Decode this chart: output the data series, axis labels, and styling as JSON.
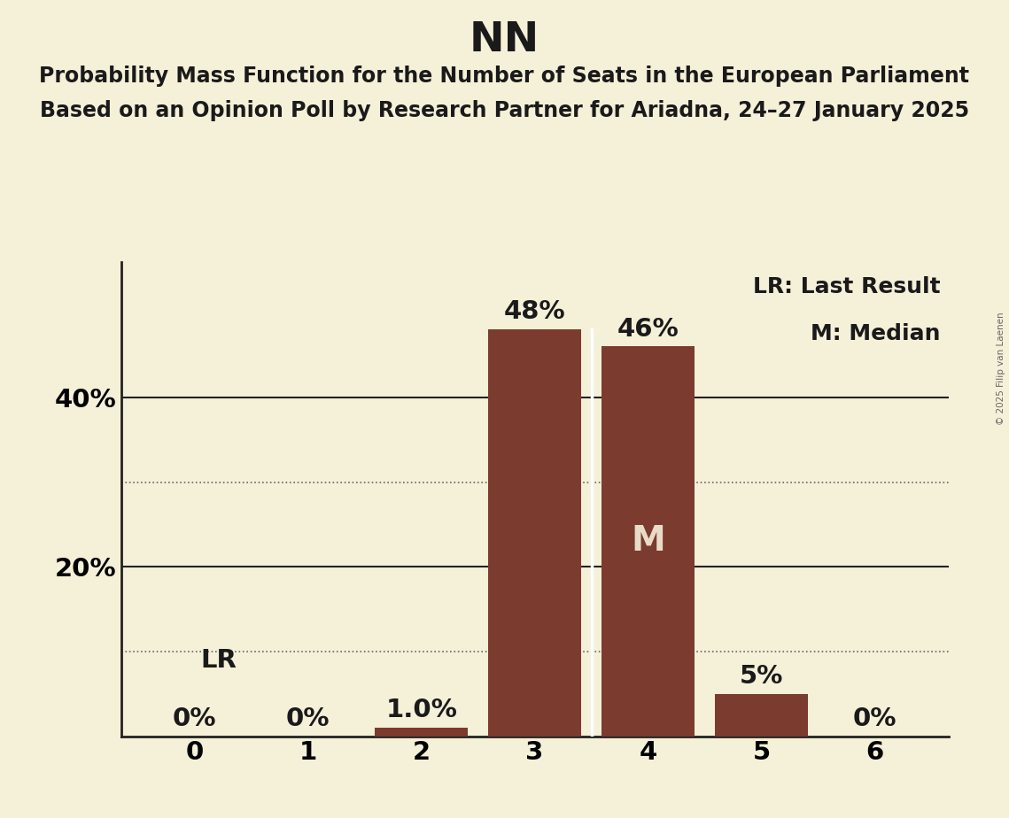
{
  "title": "NN",
  "subtitle1": "Probability Mass Function for the Number of Seats in the European Parliament",
  "subtitle2": "Based on an Opinion Poll by Research Partner for Ariadna, 24–27 January 2025",
  "copyright": "© 2025 Filip van Laenen",
  "categories": [
    0,
    1,
    2,
    3,
    4,
    5,
    6
  ],
  "values": [
    0.0,
    0.0,
    1.0,
    48.0,
    46.0,
    5.0,
    0.0
  ],
  "bar_color": "#7b3b2e",
  "background_color": "#f5f0d8",
  "label_color_dark": "#1a1a1a",
  "label_color_light": "#e8dcc8",
  "median_seat": 4,
  "lr_seat": 0,
  "dotted_lines": [
    10.0,
    30.0
  ],
  "solid_lines": [
    20.0,
    40.0
  ],
  "ylim": [
    0,
    56
  ],
  "yticks": [
    20,
    40
  ],
  "ytick_labels": [
    "20%",
    "40%"
  ],
  "legend_text1": "LR: Last Result",
  "legend_text2": "M: Median",
  "bar_labels": [
    "0%",
    "0%",
    "1.0%",
    "48%",
    "46%",
    "5%",
    "0%"
  ],
  "separator_between": [
    3,
    4
  ],
  "title_fontsize": 34,
  "subtitle_fontsize": 17,
  "bar_label_fontsize": 21,
  "axis_fontsize": 21,
  "legend_fontsize": 18,
  "lr_label_fontsize": 21,
  "bar_width": 0.82
}
